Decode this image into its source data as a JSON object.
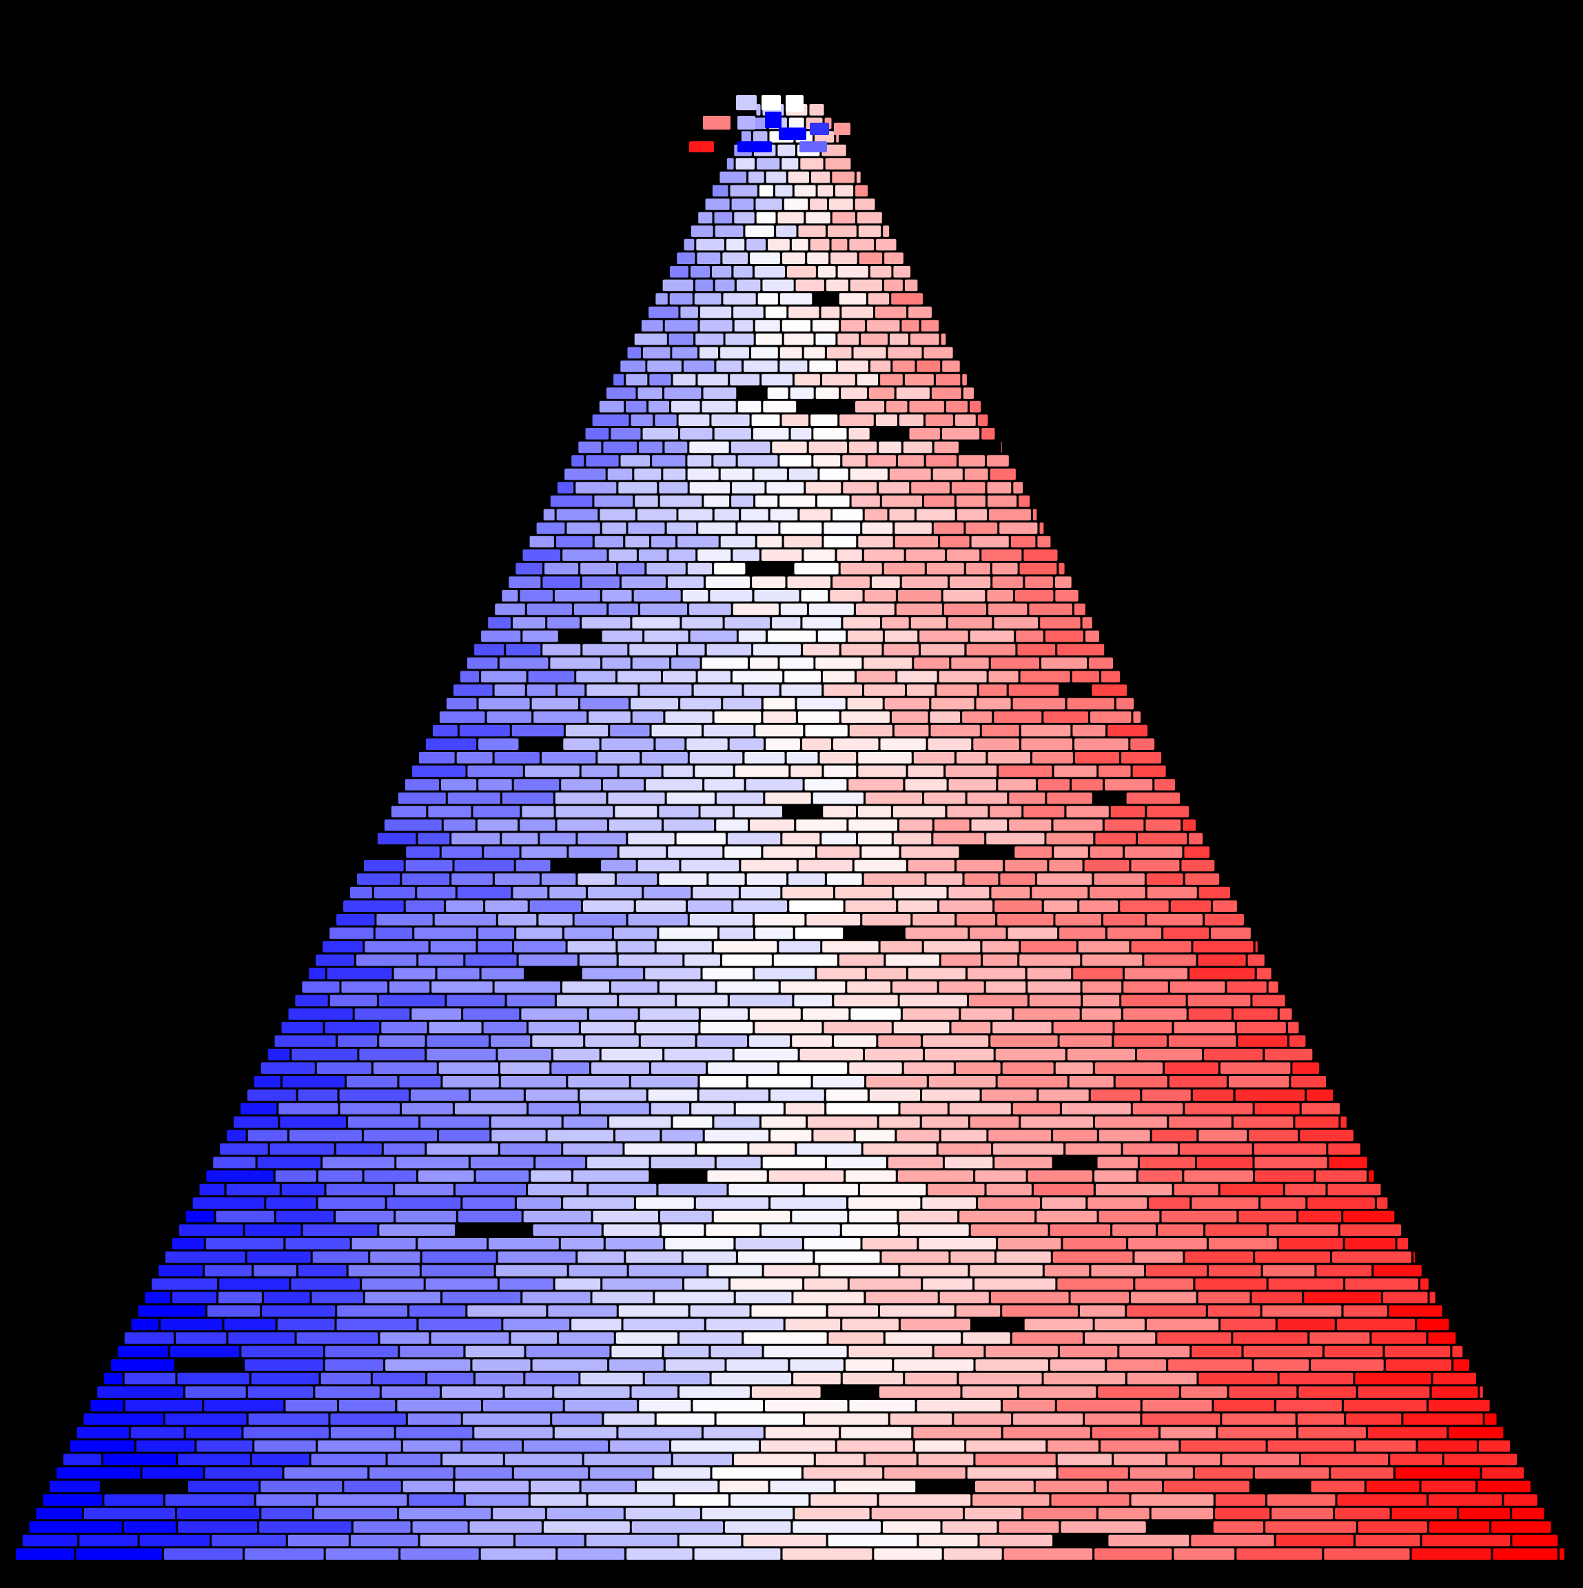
{
  "image": {
    "background": "#000000",
    "subject": "cone-of-tiles",
    "colors": {
      "negative": "#0000ff",
      "neutral": "#ffffff",
      "positive": "#ff0000",
      "gap": "#000000",
      "outline": "#000000"
    },
    "gradient_direction": "left-to-right"
  }
}
